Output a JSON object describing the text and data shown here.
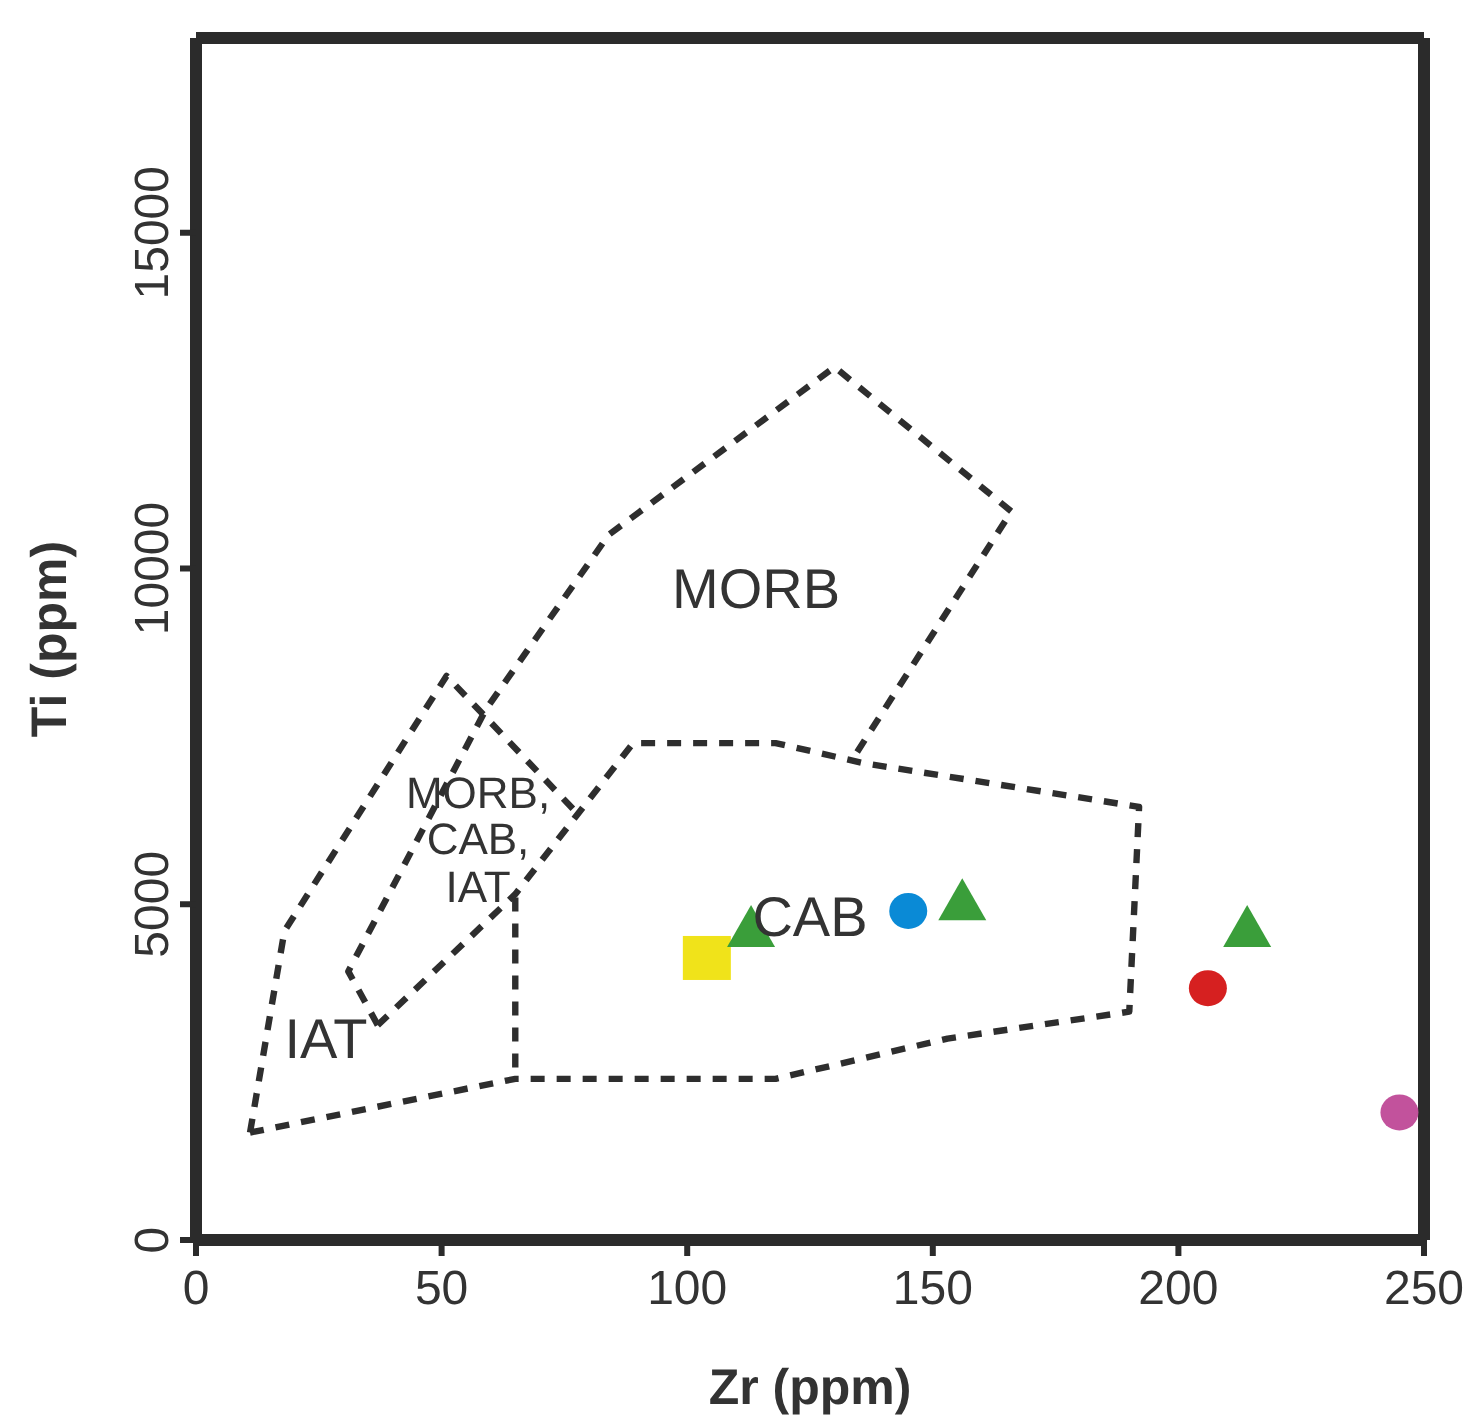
{
  "chart_data": {
    "type": "scatter",
    "xlabel": "Zr (ppm)",
    "ylabel": "Ti (ppm)",
    "xlim": [
      0,
      250
    ],
    "ylim": [
      0,
      17900
    ],
    "xticks": [
      0,
      50,
      100,
      150,
      200,
      250
    ],
    "yticks": [
      0,
      5000,
      10000,
      15000
    ],
    "grid": false,
    "series": [
      {
        "type": "line",
        "color": "#2e2e2e",
        "line_style": "dashed",
        "marker": "none",
        "x": [
          11,
          18,
          51,
          77
        ],
        "values": [
          1600,
          4600,
          8400,
          6400
        ]
      },
      {
        "type": "line",
        "color": "#2e2e2e",
        "line_style": "dashed",
        "marker": "none",
        "x": [
          11,
          65,
          118,
          153,
          190,
          192,
          136,
          118,
          89,
          65,
          37
        ],
        "values": [
          1600,
          2400,
          2400,
          3000,
          3400,
          6450,
          7100,
          7400,
          7400,
          5150,
          3200
        ]
      },
      {
        "type": "line",
        "color": "#2e2e2e",
        "line_style": "dashed",
        "marker": "none",
        "x": [
          65,
          65
        ],
        "values": [
          5100,
          2400
        ]
      },
      {
        "type": "line",
        "color": "#2e2e2e",
        "line_style": "dashed",
        "marker": "none",
        "x": [
          37,
          31,
          59,
          84,
          130,
          166,
          134
        ],
        "values": [
          3200,
          4000,
          7900,
          10500,
          13000,
          10850,
          7200
        ]
      },
      {
        "color": "#f0e31a",
        "marker": "square",
        "x": [
          104
        ],
        "values": [
          4200
        ]
      },
      {
        "color": "#3a9e3a",
        "marker": "triangle",
        "x": [
          113,
          156,
          214
        ],
        "values": [
          4600,
          5000,
          4600
        ]
      },
      {
        "color": "#0a8ad6",
        "marker": "circle",
        "x": [
          145
        ],
        "values": [
          4900
        ]
      },
      {
        "color": "#d62020",
        "marker": "circle",
        "x": [
          206
        ],
        "values": [
          3750
        ]
      },
      {
        "color": "#c2529c",
        "marker": "circle",
        "x": [
          245
        ],
        "values": [
          1900
        ]
      }
    ],
    "annotations": [
      "MORB",
      "MORB,\nCAB,\nIAT",
      "CAB",
      "IAT"
    ]
  }
}
